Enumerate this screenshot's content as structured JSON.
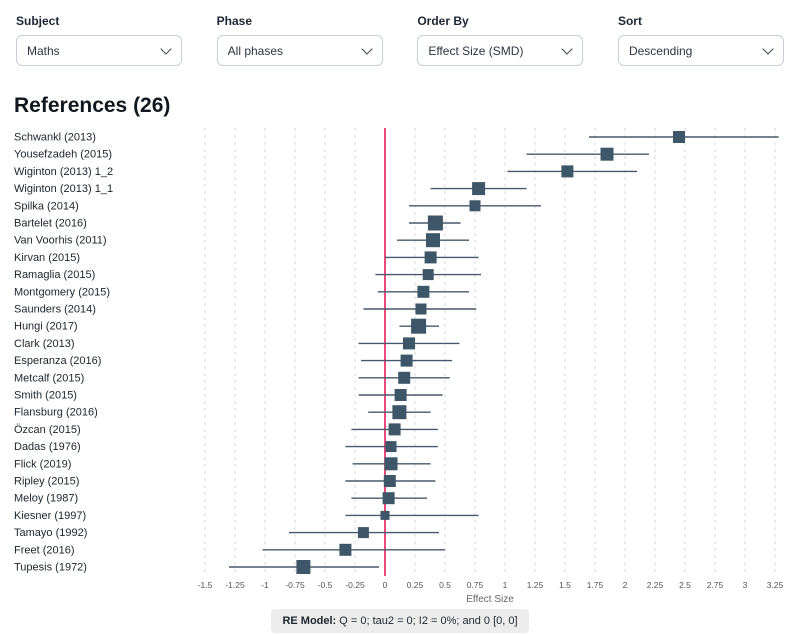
{
  "filters": [
    {
      "label": "Subject",
      "value": "Maths"
    },
    {
      "label": "Phase",
      "value": "All phases"
    },
    {
      "label": "Order By",
      "value": "Effect Size (SMD)"
    },
    {
      "label": "Sort",
      "value": "Descending"
    }
  ],
  "heading": "References (26)",
  "chart_data": {
    "type": "forest",
    "title": "",
    "xlabel": "Effect Size",
    "xlim": [
      -1.5,
      3.25
    ],
    "x_ticks": [
      -1.5,
      -1.25,
      -1,
      -0.75,
      -0.5,
      -0.25,
      0,
      0.25,
      0.5,
      0.75,
      1,
      1.25,
      1.5,
      1.75,
      2,
      2.25,
      2.5,
      2.75,
      3,
      3.25
    ],
    "zero_line": 0,
    "grid": true,
    "colors": {
      "marker": "#3d5768",
      "ci_line": "#46596c",
      "zero_line": "#e8356d",
      "grid": "#d9d9d9",
      "tick_text": "#555555",
      "label_text": "#1c242d"
    },
    "studies": [
      {
        "label": "Schwankl (2013)",
        "effect": 2.45,
        "ci_low": 1.7,
        "ci_high": 3.28,
        "weight": 12
      },
      {
        "label": "Yousefzadeh (2015)",
        "effect": 1.85,
        "ci_low": 1.18,
        "ci_high": 2.2,
        "weight": 13
      },
      {
        "label": "Wiginton (2013) 1_2",
        "effect": 1.52,
        "ci_low": 1.02,
        "ci_high": 2.1,
        "weight": 12
      },
      {
        "label": "Wiginton (2013) 1_1",
        "effect": 0.78,
        "ci_low": 0.38,
        "ci_high": 1.18,
        "weight": 13
      },
      {
        "label": "Spilka (2014)",
        "effect": 0.75,
        "ci_low": 0.2,
        "ci_high": 1.3,
        "weight": 11
      },
      {
        "label": "Bartelet (2016)",
        "effect": 0.42,
        "ci_low": 0.2,
        "ci_high": 0.63,
        "weight": 15
      },
      {
        "label": "Van Voorhis (2011)",
        "effect": 0.4,
        "ci_low": 0.1,
        "ci_high": 0.7,
        "weight": 14
      },
      {
        "label": "Kirvan (2015)",
        "effect": 0.38,
        "ci_low": 0.0,
        "ci_high": 0.78,
        "weight": 12
      },
      {
        "label": "Ramaglia (2015)",
        "effect": 0.36,
        "ci_low": -0.08,
        "ci_high": 0.8,
        "weight": 11
      },
      {
        "label": "Montgomery (2015)",
        "effect": 0.32,
        "ci_low": -0.06,
        "ci_high": 0.7,
        "weight": 12
      },
      {
        "label": "Saunders (2014)",
        "effect": 0.3,
        "ci_low": -0.18,
        "ci_high": 0.76,
        "weight": 11
      },
      {
        "label": "Hungi (2017)",
        "effect": 0.28,
        "ci_low": 0.12,
        "ci_high": 0.45,
        "weight": 15
      },
      {
        "label": "Clark (2013)",
        "effect": 0.2,
        "ci_low": -0.22,
        "ci_high": 0.62,
        "weight": 12
      },
      {
        "label": "Esperanza (2016)",
        "effect": 0.18,
        "ci_low": -0.2,
        "ci_high": 0.56,
        "weight": 12
      },
      {
        "label": "Metcalf (2015)",
        "effect": 0.16,
        "ci_low": -0.22,
        "ci_high": 0.54,
        "weight": 12
      },
      {
        "label": "Smith (2015)",
        "effect": 0.13,
        "ci_low": -0.22,
        "ci_high": 0.48,
        "weight": 12
      },
      {
        "label": "Flansburg (2016)",
        "effect": 0.12,
        "ci_low": -0.14,
        "ci_high": 0.38,
        "weight": 14
      },
      {
        "label": "Özcan (2015)",
        "effect": 0.08,
        "ci_low": -0.28,
        "ci_high": 0.44,
        "weight": 12
      },
      {
        "label": "Dadas (1976)",
        "effect": 0.05,
        "ci_low": -0.33,
        "ci_high": 0.44,
        "weight": 11
      },
      {
        "label": "Flick (2019)",
        "effect": 0.05,
        "ci_low": -0.27,
        "ci_high": 0.38,
        "weight": 13
      },
      {
        "label": "Ripley (2015)",
        "effect": 0.04,
        "ci_low": -0.33,
        "ci_high": 0.42,
        "weight": 12
      },
      {
        "label": "Meloy (1987)",
        "effect": 0.03,
        "ci_low": -0.28,
        "ci_high": 0.35,
        "weight": 12
      },
      {
        "label": "Kiesner (1997)",
        "effect": 0.0,
        "ci_low": -0.33,
        "ci_high": 0.78,
        "weight": 9
      },
      {
        "label": "Tamayo (1992)",
        "effect": -0.18,
        "ci_low": -0.8,
        "ci_high": 0.45,
        "weight": 11
      },
      {
        "label": "Freet (2016)",
        "effect": -0.33,
        "ci_low": -1.02,
        "ci_high": 0.5,
        "weight": 12
      },
      {
        "label": "Tupesis (1972)",
        "effect": -0.68,
        "ci_low": -1.3,
        "ci_high": -0.05,
        "weight": 14
      }
    ]
  },
  "footer": {
    "re_model_bold": "RE Model:",
    "re_model_text": " Q = 0; tau2 = 0; I2 = 0%; and 0 [0, 0]"
  }
}
